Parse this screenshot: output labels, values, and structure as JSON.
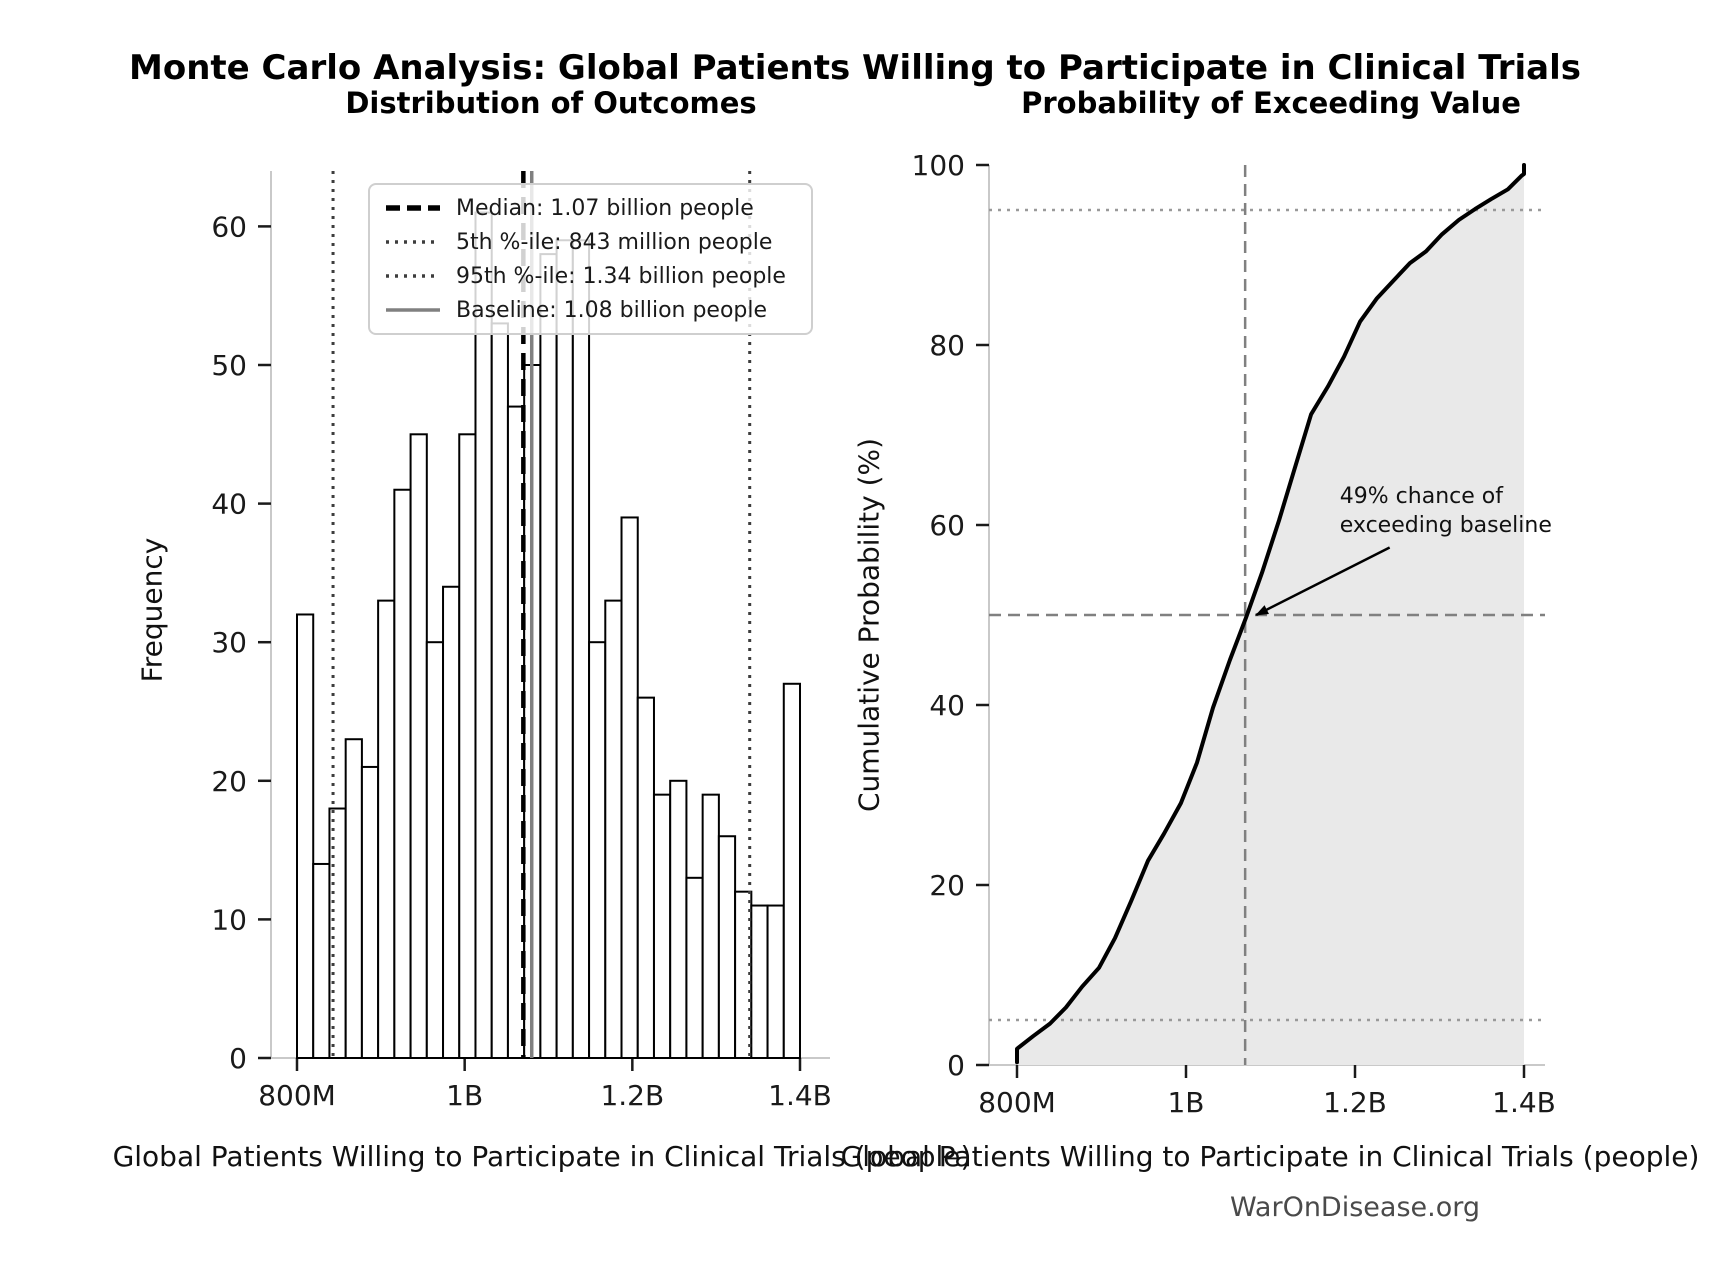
{
  "title": "Monte Carlo Analysis: Global Patients Willing to Participate in Clinical Trials",
  "footer": "WarOnDisease.org",
  "chart_data": [
    {
      "type": "bar",
      "title": "Distribution of Outcomes",
      "xlabel": "Global Patients Willing to Participate in Clinical Trials (people)",
      "ylabel": "Frequency",
      "x_unit": "millions of people",
      "bin_start": 800,
      "bin_width": 19.355,
      "values": [
        32,
        14,
        18,
        23,
        21,
        33,
        41,
        45,
        30,
        34,
        45,
        61,
        53,
        47,
        50,
        58,
        59,
        59,
        30,
        33,
        39,
        26,
        19,
        20,
        13,
        19,
        16,
        12,
        11,
        11,
        27
      ],
      "ylim": [
        0,
        64
      ],
      "yticks": [
        0,
        10,
        20,
        30,
        40,
        50,
        60
      ],
      "xticks": [
        {
          "label": "800M",
          "value": 800
        },
        {
          "label": "1B",
          "value": 1000
        },
        {
          "label": "1.2B",
          "value": 1200
        },
        {
          "label": "1.4B",
          "value": 1400
        }
      ],
      "grid": false,
      "bar_fill": "#ffffff",
      "bar_edge": "#000000",
      "legend_position": "upper left",
      "vlines": [
        {
          "id": "median",
          "value": 1070,
          "label": "Median: 1.07 billion people",
          "style": "dashed",
          "color": "#000000",
          "width": 4.5
        },
        {
          "id": "p5",
          "value": 843,
          "label": "5th %-ile: 843 million people",
          "style": "dotted",
          "color": "#3d3d3d",
          "width": 3
        },
        {
          "id": "p95",
          "value": 1340,
          "label": "95th %-ile: 1.34 billion people",
          "style": "dotted",
          "color": "#3d3d3d",
          "width": 3
        },
        {
          "id": "baseline",
          "value": 1080,
          "label": "Baseline: 1.08 billion people",
          "style": "solid",
          "color": "#808080",
          "width": 3.5
        }
      ]
    },
    {
      "type": "line",
      "title": "Probability of Exceeding Value",
      "xlabel": "Global Patients Willing to Participate in Clinical Trials (people)",
      "ylabel": "Cumulative Probability (%)",
      "ylim": [
        0,
        100
      ],
      "yticks": [
        0,
        20,
        40,
        60,
        80,
        100
      ],
      "xticks": [
        {
          "label": "800M",
          "value": 800
        },
        {
          "label": "1B",
          "value": 1000
        },
        {
          "label": "1.2B",
          "value": 1200
        },
        {
          "label": "1.4B",
          "value": 1400
        }
      ],
      "line_color": "#000000",
      "line_width": 4,
      "fill_color": "#e9e9e9",
      "points": [
        [
          800,
          0.3
        ],
        [
          800,
          1.8
        ],
        [
          819,
          3.2
        ],
        [
          839,
          4.6
        ],
        [
          858,
          6.4
        ],
        [
          877,
          8.7
        ],
        [
          897,
          10.8
        ],
        [
          916,
          14.1
        ],
        [
          935,
          18.2
        ],
        [
          955,
          22.7
        ],
        [
          974,
          25.7
        ],
        [
          994,
          29.1
        ],
        [
          1013,
          33.6
        ],
        [
          1032,
          39.7
        ],
        [
          1052,
          45.0
        ],
        [
          1071,
          49.7
        ],
        [
          1090,
          54.7
        ],
        [
          1110,
          60.5
        ],
        [
          1129,
          66.4
        ],
        [
          1148,
          72.3
        ],
        [
          1168,
          75.4
        ],
        [
          1187,
          78.7
        ],
        [
          1206,
          82.6
        ],
        [
          1226,
          85.2
        ],
        [
          1245,
          87.1
        ],
        [
          1265,
          89.1
        ],
        [
          1284,
          90.4
        ],
        [
          1303,
          92.3
        ],
        [
          1323,
          93.9
        ],
        [
          1342,
          95.1
        ],
        [
          1361,
          96.2
        ],
        [
          1381,
          97.3
        ],
        [
          1397,
          98.8
        ],
        [
          1400,
          99.0
        ],
        [
          1400,
          100
        ]
      ],
      "hlines": [
        {
          "id": "p95",
          "value": 95,
          "style": "dotted",
          "color": "#999999",
          "width": 2.5
        },
        {
          "id": "p5",
          "value": 5,
          "style": "dotted",
          "color": "#999999",
          "width": 2.5
        },
        {
          "id": "p50",
          "value": 50,
          "style": "dashed",
          "color": "#808080",
          "width": 2.5
        }
      ],
      "vlines": [
        {
          "id": "median",
          "value": 1070,
          "style": "dashed",
          "color": "#808080",
          "width": 2.5
        }
      ],
      "annotation": {
        "line1": "49% chance of",
        "line2": "exceeding baseline",
        "text_at": {
          "value": 1182,
          "percent": 64.8
        },
        "arrow_from": {
          "value": 1241,
          "percent": 57.5
        },
        "arrow_to": {
          "value": 1083,
          "percent": 50
        }
      }
    }
  ]
}
